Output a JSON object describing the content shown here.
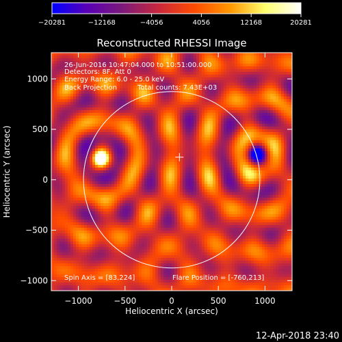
{
  "chart_data": {
    "type": "heatmap",
    "title": "Reconstructed RHESSI Image",
    "xlabel": "Heliocentric X (arcsec)",
    "ylabel": "Heliocentric Y (arcsec)",
    "xlim": [
      -1290,
      1290
    ],
    "ylim": [
      -1100,
      1260
    ],
    "xticks": [
      -1000,
      -500,
      0,
      500,
      1000
    ],
    "xtick_labels": [
      "−1000",
      "−500",
      "0",
      "500",
      "1000"
    ],
    "yticks": [
      -1000,
      -500,
      0,
      500,
      1000
    ],
    "ytick_labels": [
      "−1000",
      "−500",
      "0",
      "500",
      "1000"
    ],
    "colorbar": {
      "range": [
        -20281,
        20281
      ],
      "ticks": [
        -20281,
        -12168,
        -4056,
        4056,
        12168,
        20281
      ],
      "tick_labels": [
        "−20281",
        "−12168",
        "−4056",
        "4056",
        "12168",
        "20281"
      ],
      "colormap": [
        "#0000ff",
        "#5a00b4",
        "#7d1a78",
        "#c8283c",
        "#ff4b00",
        "#ff9600",
        "#ffff6e",
        "#ffffff"
      ]
    },
    "annotations": {
      "date_range": "26-Jun-2016 10:47:04.000 to 10:51:00.000",
      "detectors": "Detectors: 8F, Att 0",
      "energy": "Energy Range: 6.0 - 25.0 keV",
      "method": "Back Projection",
      "counts": "Total counts: 7.43E+03",
      "spin_axis": "Spin Axis = [83,224]",
      "flare_position": "Flare Position = [-760,213]"
    },
    "solar_limb_radius_arcsec": 945,
    "spin_axis_marker": [
      83,
      224
    ],
    "sources": [
      {
        "x": -760,
        "y": 213,
        "sign": "positive"
      },
      {
        "x": 920,
        "y": 250,
        "sign": "negative"
      }
    ],
    "grid": false
  },
  "timestamp": "12-Apr-2018 23:40"
}
